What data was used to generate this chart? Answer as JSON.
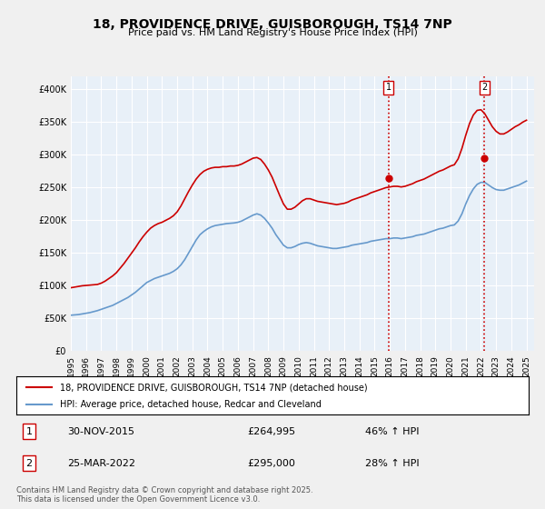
{
  "title": "18, PROVIDENCE DRIVE, GUISBOROUGH, TS14 7NP",
  "subtitle": "Price paid vs. HM Land Registry's House Price Index (HPI)",
  "title_fontsize": 11,
  "subtitle_fontsize": 9,
  "ylabel_ticks": [
    "£0",
    "£50K",
    "£100K",
    "£150K",
    "£200K",
    "£250K",
    "£300K",
    "£350K",
    "£400K"
  ],
  "ytick_vals": [
    0,
    50000,
    100000,
    150000,
    200000,
    250000,
    300000,
    350000,
    400000
  ],
  "ylim": [
    0,
    420000
  ],
  "xlim_start": 1995.0,
  "xlim_end": 2025.5,
  "xtick_years": [
    1995,
    1996,
    1997,
    1998,
    1999,
    2000,
    2001,
    2002,
    2003,
    2004,
    2005,
    2006,
    2007,
    2008,
    2009,
    2010,
    2011,
    2012,
    2013,
    2014,
    2015,
    2016,
    2017,
    2018,
    2019,
    2020,
    2021,
    2022,
    2023,
    2024,
    2025
  ],
  "bg_color": "#e8f0f8",
  "plot_bg_color": "#e8f0f8",
  "grid_color": "#ffffff",
  "red_line_color": "#cc0000",
  "blue_line_color": "#6699cc",
  "sale1_x": 2015.92,
  "sale1_y": 264995,
  "sale1_label": "1",
  "sale2_x": 2022.23,
  "sale2_y": 295000,
  "sale2_label": "2",
  "vline_color": "#cc0000",
  "vline_style": ":",
  "legend_label_red": "18, PROVIDENCE DRIVE, GUISBOROUGH, TS14 7NP (detached house)",
  "legend_label_blue": "HPI: Average price, detached house, Redcar and Cleveland",
  "annotation1_date": "30-NOV-2015",
  "annotation1_price": "£264,995",
  "annotation1_hpi": "46% ↑ HPI",
  "annotation2_date": "25-MAR-2022",
  "annotation2_price": "£295,000",
  "annotation2_hpi": "28% ↑ HPI",
  "footer_text": "Contains HM Land Registry data © Crown copyright and database right 2025.\nThis data is licensed under the Open Government Licence v3.0.",
  "hpi_data_x": [
    1995.0,
    1995.25,
    1995.5,
    1995.75,
    1996.0,
    1996.25,
    1996.5,
    1996.75,
    1997.0,
    1997.25,
    1997.5,
    1997.75,
    1998.0,
    1998.25,
    1998.5,
    1998.75,
    1999.0,
    1999.25,
    1999.5,
    1999.75,
    2000.0,
    2000.25,
    2000.5,
    2000.75,
    2001.0,
    2001.25,
    2001.5,
    2001.75,
    2002.0,
    2002.25,
    2002.5,
    2002.75,
    2003.0,
    2003.25,
    2003.5,
    2003.75,
    2004.0,
    2004.25,
    2004.5,
    2004.75,
    2005.0,
    2005.25,
    2005.5,
    2005.75,
    2006.0,
    2006.25,
    2006.5,
    2006.75,
    2007.0,
    2007.25,
    2007.5,
    2007.75,
    2008.0,
    2008.25,
    2008.5,
    2008.75,
    2009.0,
    2009.25,
    2009.5,
    2009.75,
    2010.0,
    2010.25,
    2010.5,
    2010.75,
    2011.0,
    2011.25,
    2011.5,
    2011.75,
    2012.0,
    2012.25,
    2012.5,
    2012.75,
    2013.0,
    2013.25,
    2013.5,
    2013.75,
    2014.0,
    2014.25,
    2014.5,
    2014.75,
    2015.0,
    2015.25,
    2015.5,
    2015.75,
    2016.0,
    2016.25,
    2016.5,
    2016.75,
    2017.0,
    2017.25,
    2017.5,
    2017.75,
    2018.0,
    2018.25,
    2018.5,
    2018.75,
    2019.0,
    2019.25,
    2019.5,
    2019.75,
    2020.0,
    2020.25,
    2020.5,
    2020.75,
    2021.0,
    2021.25,
    2021.5,
    2021.75,
    2022.0,
    2022.25,
    2022.5,
    2022.75,
    2023.0,
    2023.25,
    2023.5,
    2023.75,
    2024.0,
    2024.25,
    2024.5,
    2024.75,
    2025.0
  ],
  "hpi_data_y": [
    55000,
    55500,
    56000,
    57000,
    58000,
    59000,
    60500,
    62000,
    64000,
    66000,
    68000,
    70000,
    73000,
    76000,
    79000,
    82000,
    86000,
    90000,
    95000,
    100000,
    105000,
    108000,
    111000,
    113000,
    115000,
    117000,
    119000,
    122000,
    126000,
    132000,
    140000,
    150000,
    160000,
    170000,
    178000,
    183000,
    187000,
    190000,
    192000,
    193000,
    194000,
    195000,
    195500,
    196000,
    197000,
    199000,
    202000,
    205000,
    208000,
    210000,
    208000,
    203000,
    196000,
    188000,
    178000,
    170000,
    162000,
    158000,
    158000,
    160000,
    163000,
    165000,
    166000,
    165000,
    163000,
    161000,
    160000,
    159000,
    158000,
    157000,
    157000,
    158000,
    159000,
    160000,
    162000,
    163000,
    164000,
    165000,
    166000,
    168000,
    169000,
    170000,
    171000,
    172000,
    172000,
    173000,
    173000,
    172000,
    173000,
    174000,
    175000,
    177000,
    178000,
    179000,
    181000,
    183000,
    185000,
    187000,
    188000,
    190000,
    192000,
    193000,
    199000,
    210000,
    225000,
    238000,
    248000,
    255000,
    258000,
    258000,
    254000,
    250000,
    247000,
    246000,
    246000,
    248000,
    250000,
    252000,
    254000,
    257000,
    260000
  ],
  "price_data_x": [
    1995.0,
    1995.25,
    1995.5,
    1995.75,
    1996.0,
    1996.25,
    1996.5,
    1996.75,
    1997.0,
    1997.25,
    1997.5,
    1997.75,
    1998.0,
    1998.25,
    1998.5,
    1998.75,
    1999.0,
    1999.25,
    1999.5,
    1999.75,
    2000.0,
    2000.25,
    2000.5,
    2000.75,
    2001.0,
    2001.25,
    2001.5,
    2001.75,
    2002.0,
    2002.25,
    2002.5,
    2002.75,
    2003.0,
    2003.25,
    2003.5,
    2003.75,
    2004.0,
    2004.25,
    2004.5,
    2004.75,
    2005.0,
    2005.25,
    2005.5,
    2005.75,
    2006.0,
    2006.25,
    2006.5,
    2006.75,
    2007.0,
    2007.25,
    2007.5,
    2007.75,
    2008.0,
    2008.25,
    2008.5,
    2008.75,
    2009.0,
    2009.25,
    2009.5,
    2009.75,
    2010.0,
    2010.25,
    2010.5,
    2010.75,
    2011.0,
    2011.25,
    2011.5,
    2011.75,
    2012.0,
    2012.25,
    2012.5,
    2012.75,
    2013.0,
    2013.25,
    2013.5,
    2013.75,
    2014.0,
    2014.25,
    2014.5,
    2014.75,
    2015.0,
    2015.25,
    2015.5,
    2015.75,
    2016.0,
    2016.25,
    2016.5,
    2016.75,
    2017.0,
    2017.25,
    2017.5,
    2017.75,
    2018.0,
    2018.25,
    2018.5,
    2018.75,
    2019.0,
    2019.25,
    2019.5,
    2019.75,
    2020.0,
    2020.25,
    2020.5,
    2020.75,
    2021.0,
    2021.25,
    2021.5,
    2021.75,
    2022.0,
    2022.25,
    2022.5,
    2022.75,
    2023.0,
    2023.25,
    2023.5,
    2023.75,
    2024.0,
    2024.25,
    2024.5,
    2024.75,
    2025.0
  ],
  "price_data_y": [
    97000,
    98000,
    99000,
    100000,
    100500,
    101000,
    101500,
    102000,
    104000,
    107000,
    111000,
    115000,
    120000,
    127000,
    134000,
    142000,
    150000,
    158000,
    167000,
    175000,
    182000,
    188000,
    192000,
    195000,
    197000,
    200000,
    203000,
    207000,
    213000,
    222000,
    233000,
    244000,
    254000,
    263000,
    270000,
    275000,
    278000,
    280000,
    281000,
    281000,
    282000,
    282000,
    283000,
    283000,
    284000,
    286000,
    289000,
    292000,
    295000,
    296000,
    293000,
    286000,
    277000,
    266000,
    252000,
    238000,
    225000,
    217000,
    217000,
    220000,
    225000,
    230000,
    233000,
    233000,
    231000,
    229000,
    228000,
    227000,
    226000,
    225000,
    224000,
    225000,
    226000,
    228000,
    231000,
    233000,
    235000,
    237000,
    239000,
    242000,
    244000,
    246000,
    248000,
    250000,
    251000,
    252000,
    252000,
    251000,
    252000,
    254000,
    256000,
    259000,
    261000,
    263000,
    266000,
    269000,
    272000,
    275000,
    277000,
    280000,
    283000,
    285000,
    294000,
    310000,
    330000,
    348000,
    361000,
    368000,
    369000,
    363000,
    353000,
    343000,
    336000,
    332000,
    332000,
    335000,
    339000,
    343000,
    346000,
    350000,
    353000
  ]
}
